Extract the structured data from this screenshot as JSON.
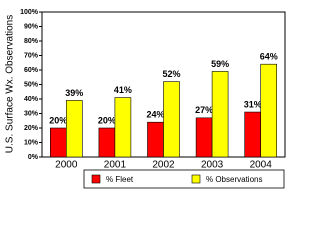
{
  "chart_data": {
    "type": "bar",
    "y_label": "U.S. Surface Wx. Observations",
    "categories": [
      "2000",
      "2001",
      "2002",
      "2003",
      "2004"
    ],
    "series": [
      {
        "name": "% Fleet",
        "color": "#ff0000",
        "values": [
          20,
          20,
          24,
          27,
          31
        ],
        "value_labels": [
          "20%",
          "20%",
          "24%",
          "27%",
          "31%"
        ]
      },
      {
        "name": "% Observations",
        "color": "#ffff00",
        "values": [
          39,
          41,
          52,
          59,
          64
        ],
        "value_labels": [
          "39%",
          "41%",
          "52%",
          "59%",
          "64%"
        ]
      }
    ],
    "ylim": [
      0,
      100
    ],
    "yticks": [
      {
        "value": 0,
        "label": "0%"
      },
      {
        "value": 10,
        "label": "10%"
      },
      {
        "value": 20,
        "label": "20%"
      },
      {
        "value": 30,
        "label": "30%"
      },
      {
        "value": 40,
        "label": "40%"
      },
      {
        "value": 50,
        "label": "50%"
      },
      {
        "value": 60,
        "label": "60%"
      },
      {
        "value": 70,
        "label": "70%"
      },
      {
        "value": 80,
        "label": "80%"
      },
      {
        "value": 90,
        "label": "90%"
      },
      {
        "value": 100,
        "label": "100%"
      }
    ],
    "legend": "bottom"
  }
}
